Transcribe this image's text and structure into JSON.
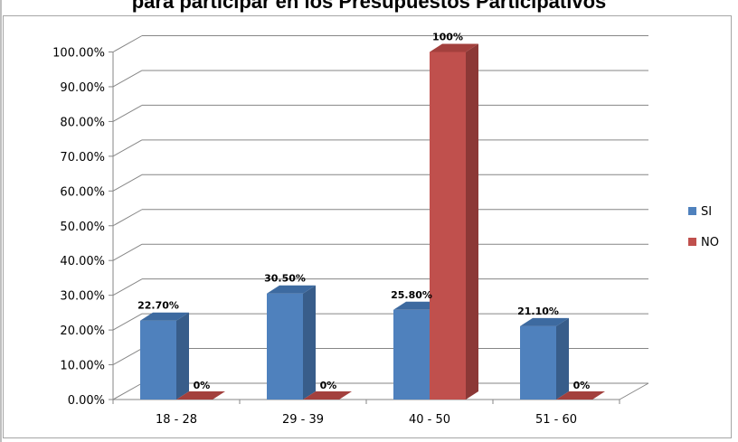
{
  "chart_data": {
    "type": "bar",
    "title": "para participar en los Presupuestos Participativos",
    "categories": [
      "18 - 28",
      "29 - 39",
      "40 - 50",
      "51 - 60"
    ],
    "series": [
      {
        "name": "SI",
        "values": [
          22.7,
          30.5,
          25.8,
          21.1
        ],
        "labels": [
          "22.70%",
          "30.50%",
          "25.80%",
          "21.10%"
        ],
        "color": "#4f81bd",
        "side": "#385d8a",
        "top": "#3d6aa0"
      },
      {
        "name": "NO",
        "values": [
          0,
          0,
          100,
          0
        ],
        "labels": [
          "0%",
          "0%",
          "100%",
          "0%"
        ],
        "color": "#c0504d",
        "side": "#8c3836",
        "top": "#a3403d"
      }
    ],
    "yticks": [
      "0.00%",
      "10.00%",
      "20.00%",
      "30.00%",
      "40.00%",
      "50.00%",
      "60.00%",
      "70.00%",
      "80.00%",
      "90.00%",
      "100.00%"
    ],
    "ylim": [
      0,
      100
    ],
    "grid": true,
    "legend_position": "right"
  }
}
